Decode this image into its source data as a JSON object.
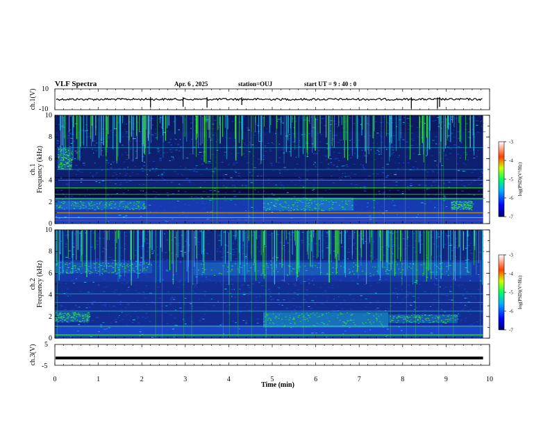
{
  "header": {
    "title": "VLF Spectra",
    "date": "Apr. 6 , 2025",
    "station": "station=OUJ",
    "start_ut": "start UT =  9 : 40 : 0"
  },
  "chart_data": [
    {
      "type": "line",
      "panel": "ch1-waveform",
      "ylabel": "ch.1(V)",
      "ylim": [
        -10,
        10
      ],
      "yticks": [
        "10",
        "-10"
      ],
      "baseline": 0
    },
    {
      "type": "heatmap",
      "panel": "ch1-spectrogram",
      "ylabel_line1": "ch.1",
      "ylabel_line2": "Frequency (kHz)",
      "ylim": [
        0,
        10
      ],
      "yticks": [
        "0",
        "2",
        "4",
        "6",
        "8",
        "10"
      ],
      "colorbar": {
        "label": "log(PSD)(V²/Hz)",
        "ticks": [
          "-3",
          "-4",
          "-5",
          "-6",
          "-7"
        ],
        "range": [
          -7,
          -3
        ]
      }
    },
    {
      "type": "heatmap",
      "panel": "ch2-spectrogram",
      "ylabel_line1": "ch.2",
      "ylabel_line2": "Frequency (kHz)",
      "ylim": [
        0,
        10
      ],
      "yticks": [
        "0",
        "2",
        "4",
        "6",
        "8",
        "10"
      ],
      "colorbar": {
        "label": "log(PSD)(V²/Hz)",
        "ticks": [
          "-3",
          "-4",
          "-5",
          "-6",
          "-7"
        ],
        "range": [
          -7,
          -3
        ]
      }
    },
    {
      "type": "line",
      "panel": "ch3-waveform",
      "ylabel": "ch.3(V)",
      "ylim": [
        -5,
        5
      ],
      "yticks": [
        "5",
        "-5"
      ],
      "level": -1.5
    }
  ],
  "xaxis": {
    "label": "Time (min)",
    "xlim": [
      0,
      10
    ],
    "ticks": [
      "0",
      "1",
      "2",
      "3",
      "4",
      "5",
      "6",
      "7",
      "8",
      "9",
      "10"
    ],
    "data_end": 9.85
  },
  "colors": {
    "background": "#ffffff",
    "axis": "#000000",
    "spectro_dark": "#050a3a",
    "spectro_blue": "#1e4bd8",
    "spectro_cyan": "#20c8e8",
    "spectro_green": "#3cf040",
    "line_red": "#e01818"
  }
}
